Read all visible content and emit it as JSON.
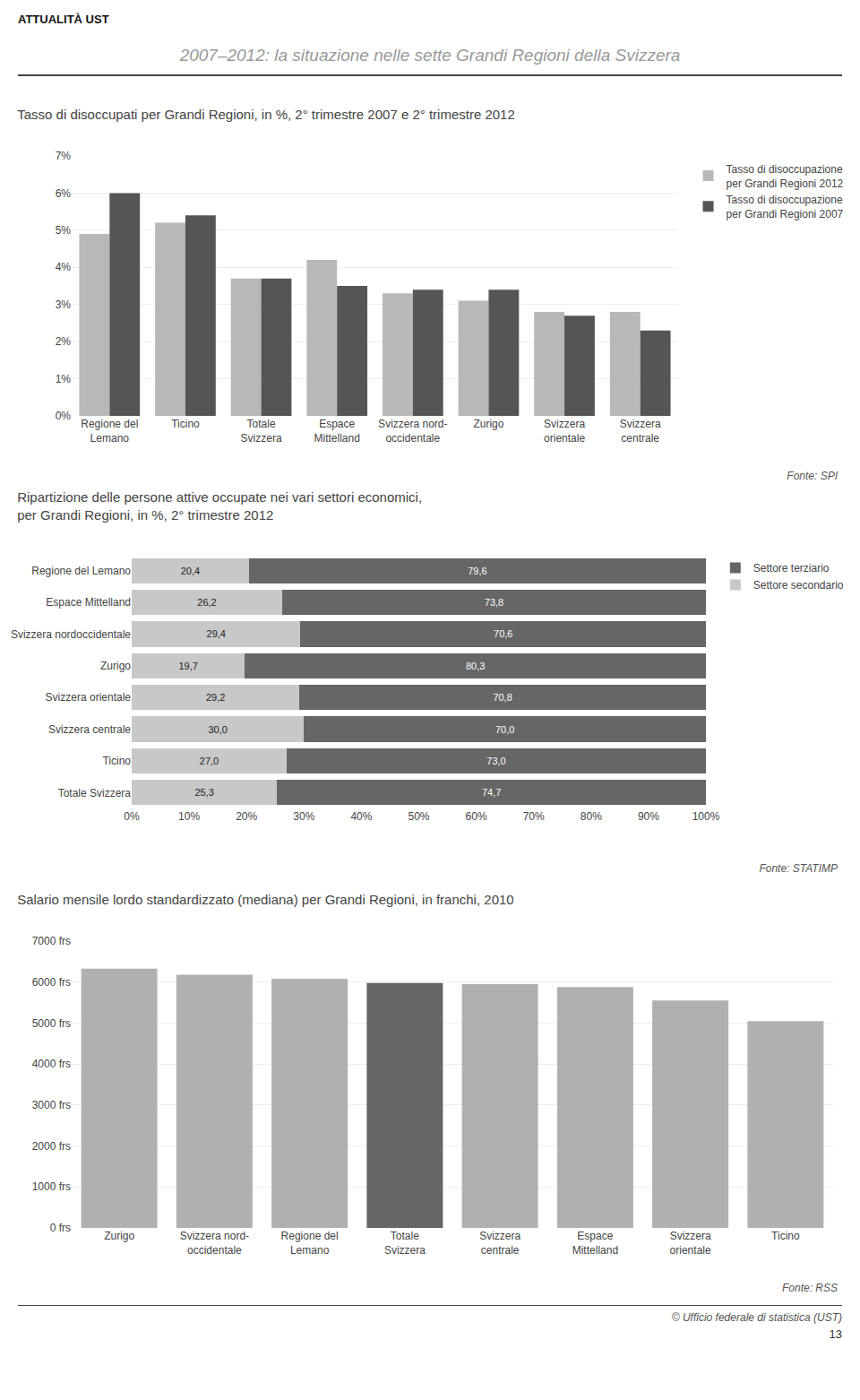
{
  "title": "2007–2012: la situazione nelle sette Grandi Regioni della Svizzera",
  "annotations": [
    "ATTUALITÀ UST",
    "© Ufficio federale di statistica (UST)",
    "13"
  ],
  "chart_data": [
    {
      "type": "bar",
      "title": "Tasso di disoccupati per Grandi Regioni, in %, 2° trimestre 2007 e 2° trimestre 2012",
      "categories": [
        "Regione del\nLemano",
        "Ticino",
        "Totale\nSvizzera",
        "Espace\nMittelland",
        "Svizzera nord-\noccidentale",
        "Zurigo",
        "Svizzera\norientale",
        "Svizzera\ncentrale"
      ],
      "series": [
        {
          "name": "Tasso di disoccupazione\nper Grandi Regioni 2012",
          "color": "#b8b8b8",
          "values": [
            4.9,
            5.2,
            3.7,
            4.2,
            3.3,
            3.1,
            2.8,
            2.8
          ]
        },
        {
          "name": "Tasso di disoccupazione\nper Grandi Regioni 2007",
          "color": "#555555",
          "values": [
            6.0,
            5.4,
            3.7,
            3.5,
            3.4,
            3.4,
            2.7,
            2.3
          ]
        }
      ],
      "ylim": [
        0,
        7
      ],
      "yticks": [
        {
          "value": 0,
          "label": "0%"
        },
        {
          "value": 1,
          "label": "1%"
        },
        {
          "value": 2,
          "label": "2%"
        },
        {
          "value": 3,
          "label": "3%"
        },
        {
          "value": 4,
          "label": "4%"
        },
        {
          "value": 5,
          "label": "5%"
        },
        {
          "value": 6,
          "label": "6%"
        },
        {
          "value": 7,
          "label": "7%"
        }
      ],
      "grid": true,
      "legend": "right",
      "annotations": [
        "Fonte: SPI"
      ]
    },
    {
      "type": "bar",
      "orientation": "horizontal",
      "stacked": true,
      "title": "Ripartizione delle persone attive occupate nei vari settori economici,\nper Grandi Regioni, in %, 2° trimestre 2012",
      "categories": [
        "Regione del Lemano",
        "Espace Mittelland",
        "Svizzera nordoccidentale",
        "Zurigo",
        "Svizzera orientale",
        "Svizzera centrale",
        "Ticino",
        "Totale Svizzera"
      ],
      "series": [
        {
          "name": "Settore secondario",
          "color": "#c8c8c8",
          "values": [
            20.4,
            26.2,
            29.4,
            19.7,
            29.2,
            30.0,
            27.0,
            25.3
          ],
          "value_labels": [
            "20,4",
            "26,2",
            "29,4",
            "19,7",
            "29,2",
            "30,0",
            "27,0",
            "25,3"
          ]
        },
        {
          "name": "Settore terziario",
          "color": "#666666",
          "values": [
            79.6,
            73.8,
            70.6,
            80.3,
            70.8,
            70.0,
            73.0,
            74.7
          ],
          "value_labels": [
            "79,6",
            "73,8",
            "70,6",
            "80,3",
            "70,8",
            "70,0",
            "73,0",
            "74,7"
          ]
        }
      ],
      "xlim": [
        0,
        100
      ],
      "xticks": [
        {
          "value": 0,
          "label": "0%"
        },
        {
          "value": 10,
          "label": "10%"
        },
        {
          "value": 20,
          "label": "20%"
        },
        {
          "value": 30,
          "label": "30%"
        },
        {
          "value": 40,
          "label": "40%"
        },
        {
          "value": 50,
          "label": "50%"
        },
        {
          "value": 60,
          "label": "60%"
        },
        {
          "value": 70,
          "label": "70%"
        },
        {
          "value": 80,
          "label": "80%"
        },
        {
          "value": 90,
          "label": "90%"
        },
        {
          "value": 100,
          "label": "100%"
        }
      ],
      "grid": false,
      "data_labels": true,
      "legend": "right",
      "annotations": [
        "Fonte: STATIMP"
      ]
    },
    {
      "type": "bar",
      "title": "Salario mensile lordo standardizzato (mediana) per Grandi Regioni, in franchi, 2010",
      "categories": [
        "Zurigo",
        "Svizzera nord-\noccidentale",
        "Regione del\nLemano",
        "Totale\nSvizzera",
        "Svizzera\ncentrale",
        "Espace\nMittelland",
        "Svizzera\norientale",
        "Ticino"
      ],
      "values": [
        6330,
        6180,
        6080,
        5980,
        5950,
        5880,
        5550,
        5050
      ],
      "colors": [
        "#b0b0b0",
        "#b0b0b0",
        "#b0b0b0",
        "#666666",
        "#b0b0b0",
        "#b0b0b0",
        "#b0b0b0",
        "#b0b0b0"
      ],
      "ylim": [
        0,
        7000
      ],
      "yticks": [
        {
          "value": 0,
          "label": "0 frs"
        },
        {
          "value": 1000,
          "label": "1000 frs"
        },
        {
          "value": 2000,
          "label": "2000 frs"
        },
        {
          "value": 3000,
          "label": "3000 frs"
        },
        {
          "value": 4000,
          "label": "4000 frs"
        },
        {
          "value": 5000,
          "label": "5000 frs"
        },
        {
          "value": 6000,
          "label": "6000 frs"
        },
        {
          "value": 7000,
          "label": "7000 frs"
        }
      ],
      "grid": true,
      "annotations": [
        "Fonte: RSS"
      ]
    }
  ]
}
